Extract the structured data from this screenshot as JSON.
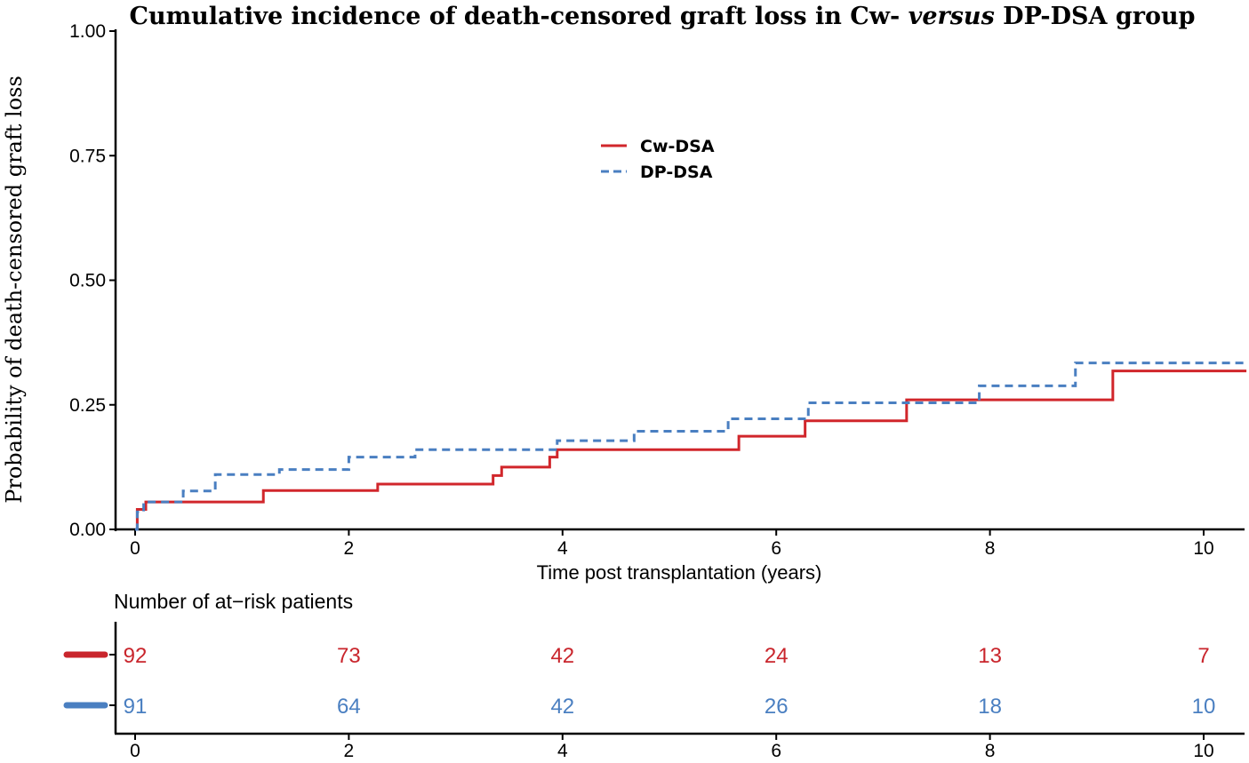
{
  "chart_data": {
    "type": "line",
    "title_parts": [
      "Cumulative incidence of death-censored graft loss in Cw- ",
      "versus",
      " DP-DSA group"
    ],
    "xlabel": "Time post transplantation (years)",
    "ylabel": "Probability of death-censored graft loss",
    "xlim": [
      -0.1,
      10.4
    ],
    "ylim": [
      0,
      1.0
    ],
    "x_ticks": [
      "0",
      "2",
      "4",
      "6",
      "8",
      "10"
    ],
    "y_ticks": [
      "0.00",
      "0.25",
      "0.50",
      "0.75",
      "1.00"
    ],
    "grid": false,
    "legend_position": "top-center",
    "series": [
      {
        "name": "Cw-DSA",
        "color": "#d1262b",
        "style": "solid",
        "steps": [
          [
            0,
            0
          ],
          [
            0.02,
            0.04
          ],
          [
            0.1,
            0.055
          ],
          [
            1.2,
            0.078
          ],
          [
            2.27,
            0.091
          ],
          [
            3.35,
            0.108
          ],
          [
            3.43,
            0.125
          ],
          [
            3.88,
            0.145
          ],
          [
            3.95,
            0.16
          ],
          [
            5.65,
            0.187
          ],
          [
            6.27,
            0.218
          ],
          [
            7.22,
            0.26
          ],
          [
            9.15,
            0.318
          ],
          [
            10.4,
            0.318
          ]
        ]
      },
      {
        "name": "DP-DSA",
        "color": "#4a7fc1",
        "style": "dashed",
        "steps": [
          [
            0,
            0
          ],
          [
            0.02,
            0.035
          ],
          [
            0.08,
            0.055
          ],
          [
            0.45,
            0.077
          ],
          [
            0.75,
            0.11
          ],
          [
            1.35,
            0.12
          ],
          [
            2.0,
            0.145
          ],
          [
            2.62,
            0.16
          ],
          [
            3.95,
            0.178
          ],
          [
            4.67,
            0.197
          ],
          [
            5.55,
            0.222
          ],
          [
            6.3,
            0.254
          ],
          [
            7.9,
            0.288
          ],
          [
            8.8,
            0.334
          ],
          [
            10.4,
            0.334
          ]
        ]
      }
    ],
    "risk_table": {
      "title": "Number of at−risk patients",
      "x_ticks": [
        "0",
        "2",
        "4",
        "6",
        "8",
        "10"
      ],
      "rows": [
        {
          "name": "Cw-DSA",
          "color": "#c9252c",
          "values": [
            "92",
            "73",
            "42",
            "24",
            "13",
            "7"
          ]
        },
        {
          "name": "DP-DSA",
          "color": "#4a7fc1",
          "values": [
            "91",
            "64",
            "42",
            "26",
            "18",
            "10"
          ]
        }
      ]
    }
  }
}
